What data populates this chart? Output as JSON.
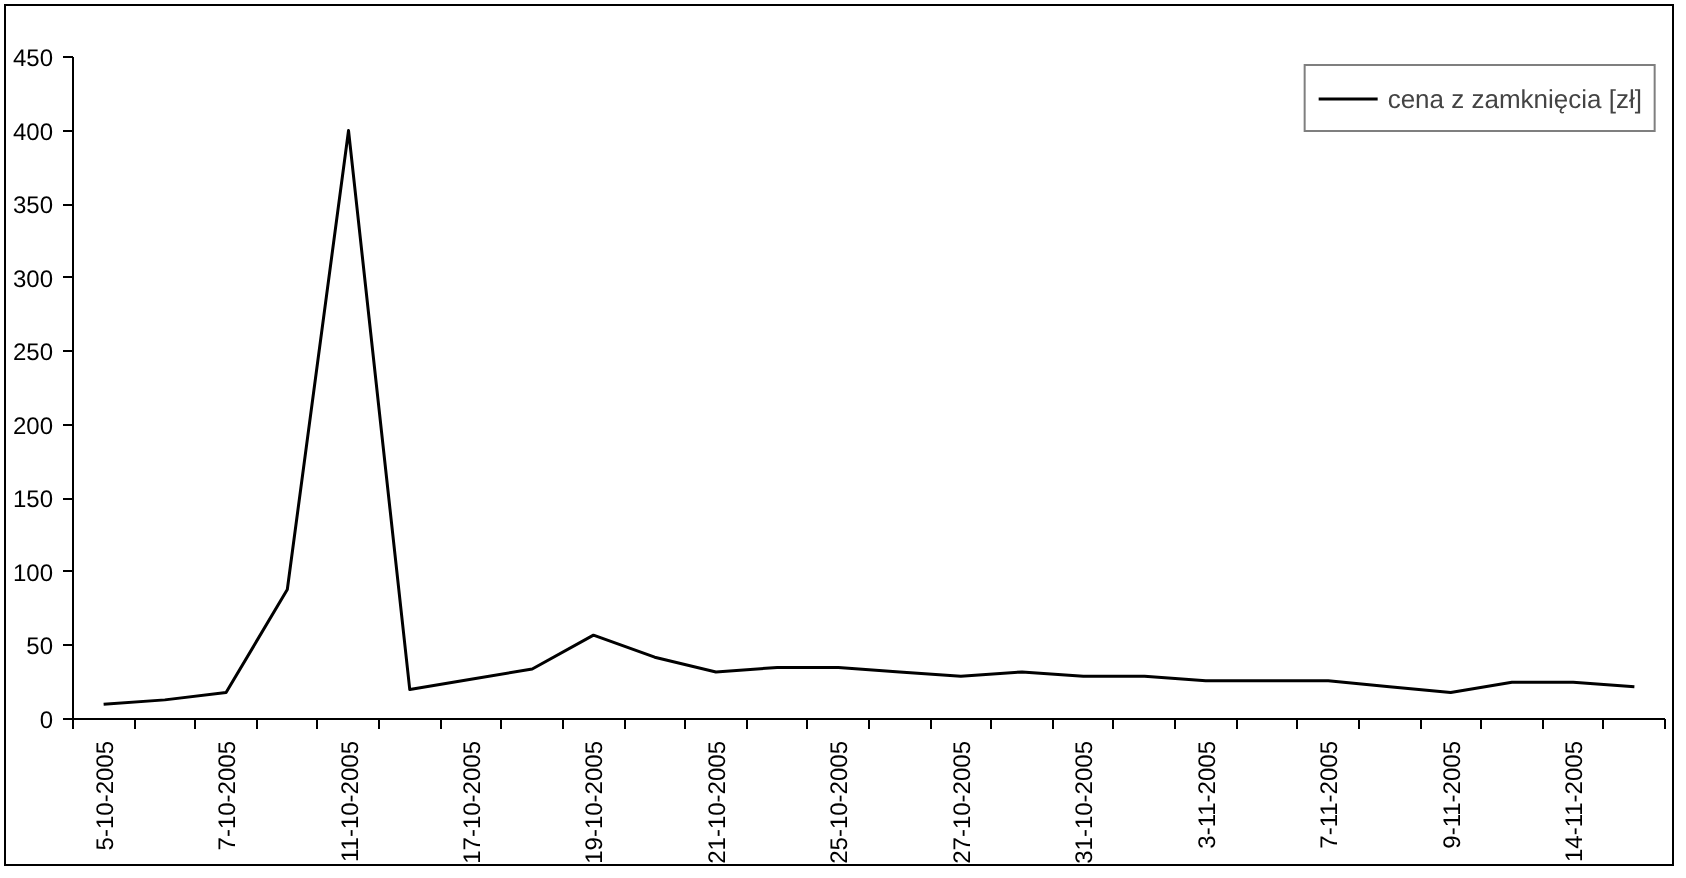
{
  "chart_data": {
    "type": "line",
    "categories": [
      "5-10-2005",
      null,
      "7-10-2005",
      null,
      "11-10-2005",
      null,
      "17-10-2005",
      null,
      "19-10-2005",
      null,
      "21-10-2005",
      null,
      "25-10-2005",
      null,
      "27-10-2005",
      null,
      "31-10-2005",
      null,
      "3-11-2005",
      null,
      "7-11-2005",
      null,
      "9-11-2005",
      null,
      "14-11-2005",
      null
    ],
    "series": [
      {
        "name": "cena z zamknięcia [zł]",
        "color": "#000000",
        "values": [
          10,
          13,
          18,
          88,
          400,
          20,
          27,
          34,
          57,
          42,
          32,
          35,
          35,
          32,
          29,
          32,
          29,
          29,
          26,
          26,
          26,
          22,
          18,
          25,
          25,
          22
        ]
      }
    ],
    "ylim": [
      0,
      450
    ],
    "yticks": [
      0,
      50,
      100,
      150,
      200,
      250,
      300,
      350,
      400,
      450
    ],
    "grid": false,
    "legend": "top right",
    "marker": "none",
    "line_style": "solid"
  }
}
